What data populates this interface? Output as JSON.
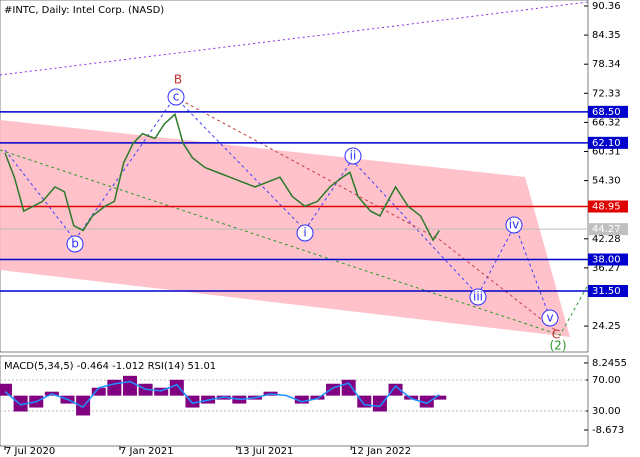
{
  "chart_data": [
    {
      "type": "line",
      "title": "#INTC, Daily:  Intel Corp. (NASD)",
      "color": "#2a7a2a",
      "x": [
        0,
        15,
        30,
        45,
        60,
        80,
        95,
        110,
        125,
        140,
        160,
        175,
        190,
        205,
        220,
        240,
        255,
        272,
        285,
        300,
        320,
        340,
        360,
        380,
        400,
        420,
        440,
        460,
        480,
        500,
        520,
        540,
        552,
        565,
        585,
        600,
        625,
        645,
        665,
        685,
        695
      ],
      "values": [
        60,
        55,
        48,
        49,
        50,
        53,
        52,
        45,
        44,
        47,
        49,
        50,
        58,
        62,
        64,
        63,
        66,
        68,
        62,
        59,
        57,
        56,
        55,
        54,
        53,
        54,
        55,
        51,
        49,
        50,
        53,
        55,
        56,
        51,
        48,
        47,
        53,
        49,
        47,
        42,
        44
      ],
      "xlim": [
        -8,
        933
      ],
      "ylim": [
        18.9,
        91.6
      ],
      "xticks": [
        {
          "value": 0,
          "label": "7 Jul 2020"
        },
        {
          "value": 184,
          "label": "7 Jan 2021"
        },
        {
          "value": 371,
          "label": "13 Jul 2021"
        },
        {
          "value": 554,
          "label": "12 Jan 2022"
        }
      ],
      "yticks": [
        90.36,
        84.35,
        78.34,
        72.33,
        66.32,
        60.31,
        {
          "value": 54.3,
          "label": "54.30"
        },
        42.28,
        36.27,
        24.25
      ],
      "levels": [
        {
          "value": 68.5,
          "label": "68.50",
          "color": "#0000cc"
        },
        {
          "value": 62.1,
          "label": "62.10",
          "color": "#0000cc"
        },
        {
          "value": 48.95,
          "label": "48.95",
          "color": "#e00000"
        },
        {
          "value": 38,
          "label": "38.00",
          "color": "#0000cc"
        },
        {
          "value": 31.5,
          "label": "31.50",
          "color": "#0000cc"
        }
      ],
      "current": {
        "value": 44.27,
        "label": "44.27"
      },
      "wave_labels": [
        "B",
        "c",
        "b",
        "i",
        "ii",
        "iii",
        "iv",
        "v",
        "C",
        "(2)"
      ]
    },
    {
      "type": "bar",
      "title": "MACD(5,34,5) -0.464 -1.012 RSI(14) 51.01",
      "color": "#800080",
      "x": [
        0,
        25,
        50,
        75,
        100,
        125,
        150,
        175,
        200,
        225,
        250,
        275,
        300,
        325,
        350,
        375,
        400,
        425,
        450,
        475,
        500,
        525,
        550,
        575,
        600,
        625,
        650,
        675,
        695
      ],
      "values": [
        3,
        -4,
        -3,
        1,
        -2,
        -5,
        2,
        4,
        5,
        3,
        2,
        4,
        -3,
        -2,
        -1,
        -2,
        -1,
        1,
        0,
        -2,
        -1,
        3,
        4,
        -3,
        -4,
        3,
        -1,
        -3,
        -1
      ],
      "rsi": [
        55,
        38,
        42,
        52,
        45,
        35,
        60,
        65,
        68,
        58,
        56,
        64,
        40,
        44,
        48,
        45,
        47,
        52,
        50,
        42,
        46,
        60,
        66,
        38,
        36,
        62,
        46,
        40,
        51
      ],
      "rsi_color": "#1e90ff",
      "xlim": [
        -8,
        933
      ],
      "ylim": [
        -12.7,
        10
      ],
      "yticks": [
        8.2455,
        -8.673
      ],
      "y2lim": [
        -15.2,
        101
      ],
      "y2ticks": [
        {
          "value": 70,
          "label": "70.00"
        },
        {
          "value": 30,
          "label": "30.00"
        }
      ]
    }
  ]
}
